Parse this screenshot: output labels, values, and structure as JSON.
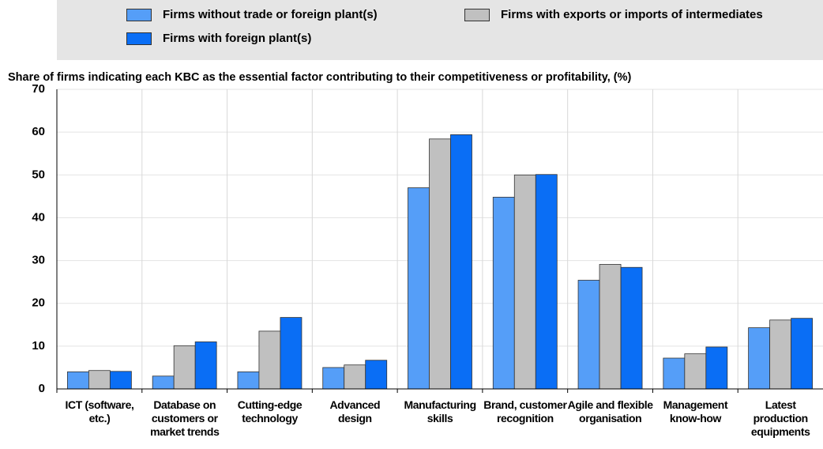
{
  "chart_data": {
    "type": "bar",
    "ylabel": "Share of firms indicating each KBC as the essential factor contributing to their competitiveness or profitability, (%)",
    "categories": [
      "ICT (software, etc.)",
      "Database on customers or market trends",
      "Cutting-edge technology",
      "Advanced design",
      "Manufacturing skills",
      "Brand, customer recognition",
      "Agile and flexible organisation",
      "Management know-how",
      "Latest production equipments"
    ],
    "series": [
      {
        "name": "Firms without trade or foreign plant(s)",
        "color": "#559ef8",
        "values": [
          4,
          3,
          4,
          5,
          47,
          44.8,
          25.4,
          7.2,
          14.3
        ]
      },
      {
        "name": "Firms with exports or imports of intermediates",
        "color": "#c0c0c0",
        "values": [
          4.3,
          10.1,
          13.5,
          5.6,
          58.4,
          50,
          29.1,
          8.2,
          16.1
        ]
      },
      {
        "name": "Firms with foreign plant(s)",
        "color": "#0a6ef5",
        "values": [
          4.1,
          11,
          16.7,
          6.7,
          59.4,
          50.1,
          28.4,
          9.8,
          16.5
        ]
      }
    ],
    "ylim": [
      0,
      70
    ],
    "yticks": [
      0,
      10,
      20,
      30,
      40,
      50,
      60,
      70
    ],
    "grid": true
  }
}
